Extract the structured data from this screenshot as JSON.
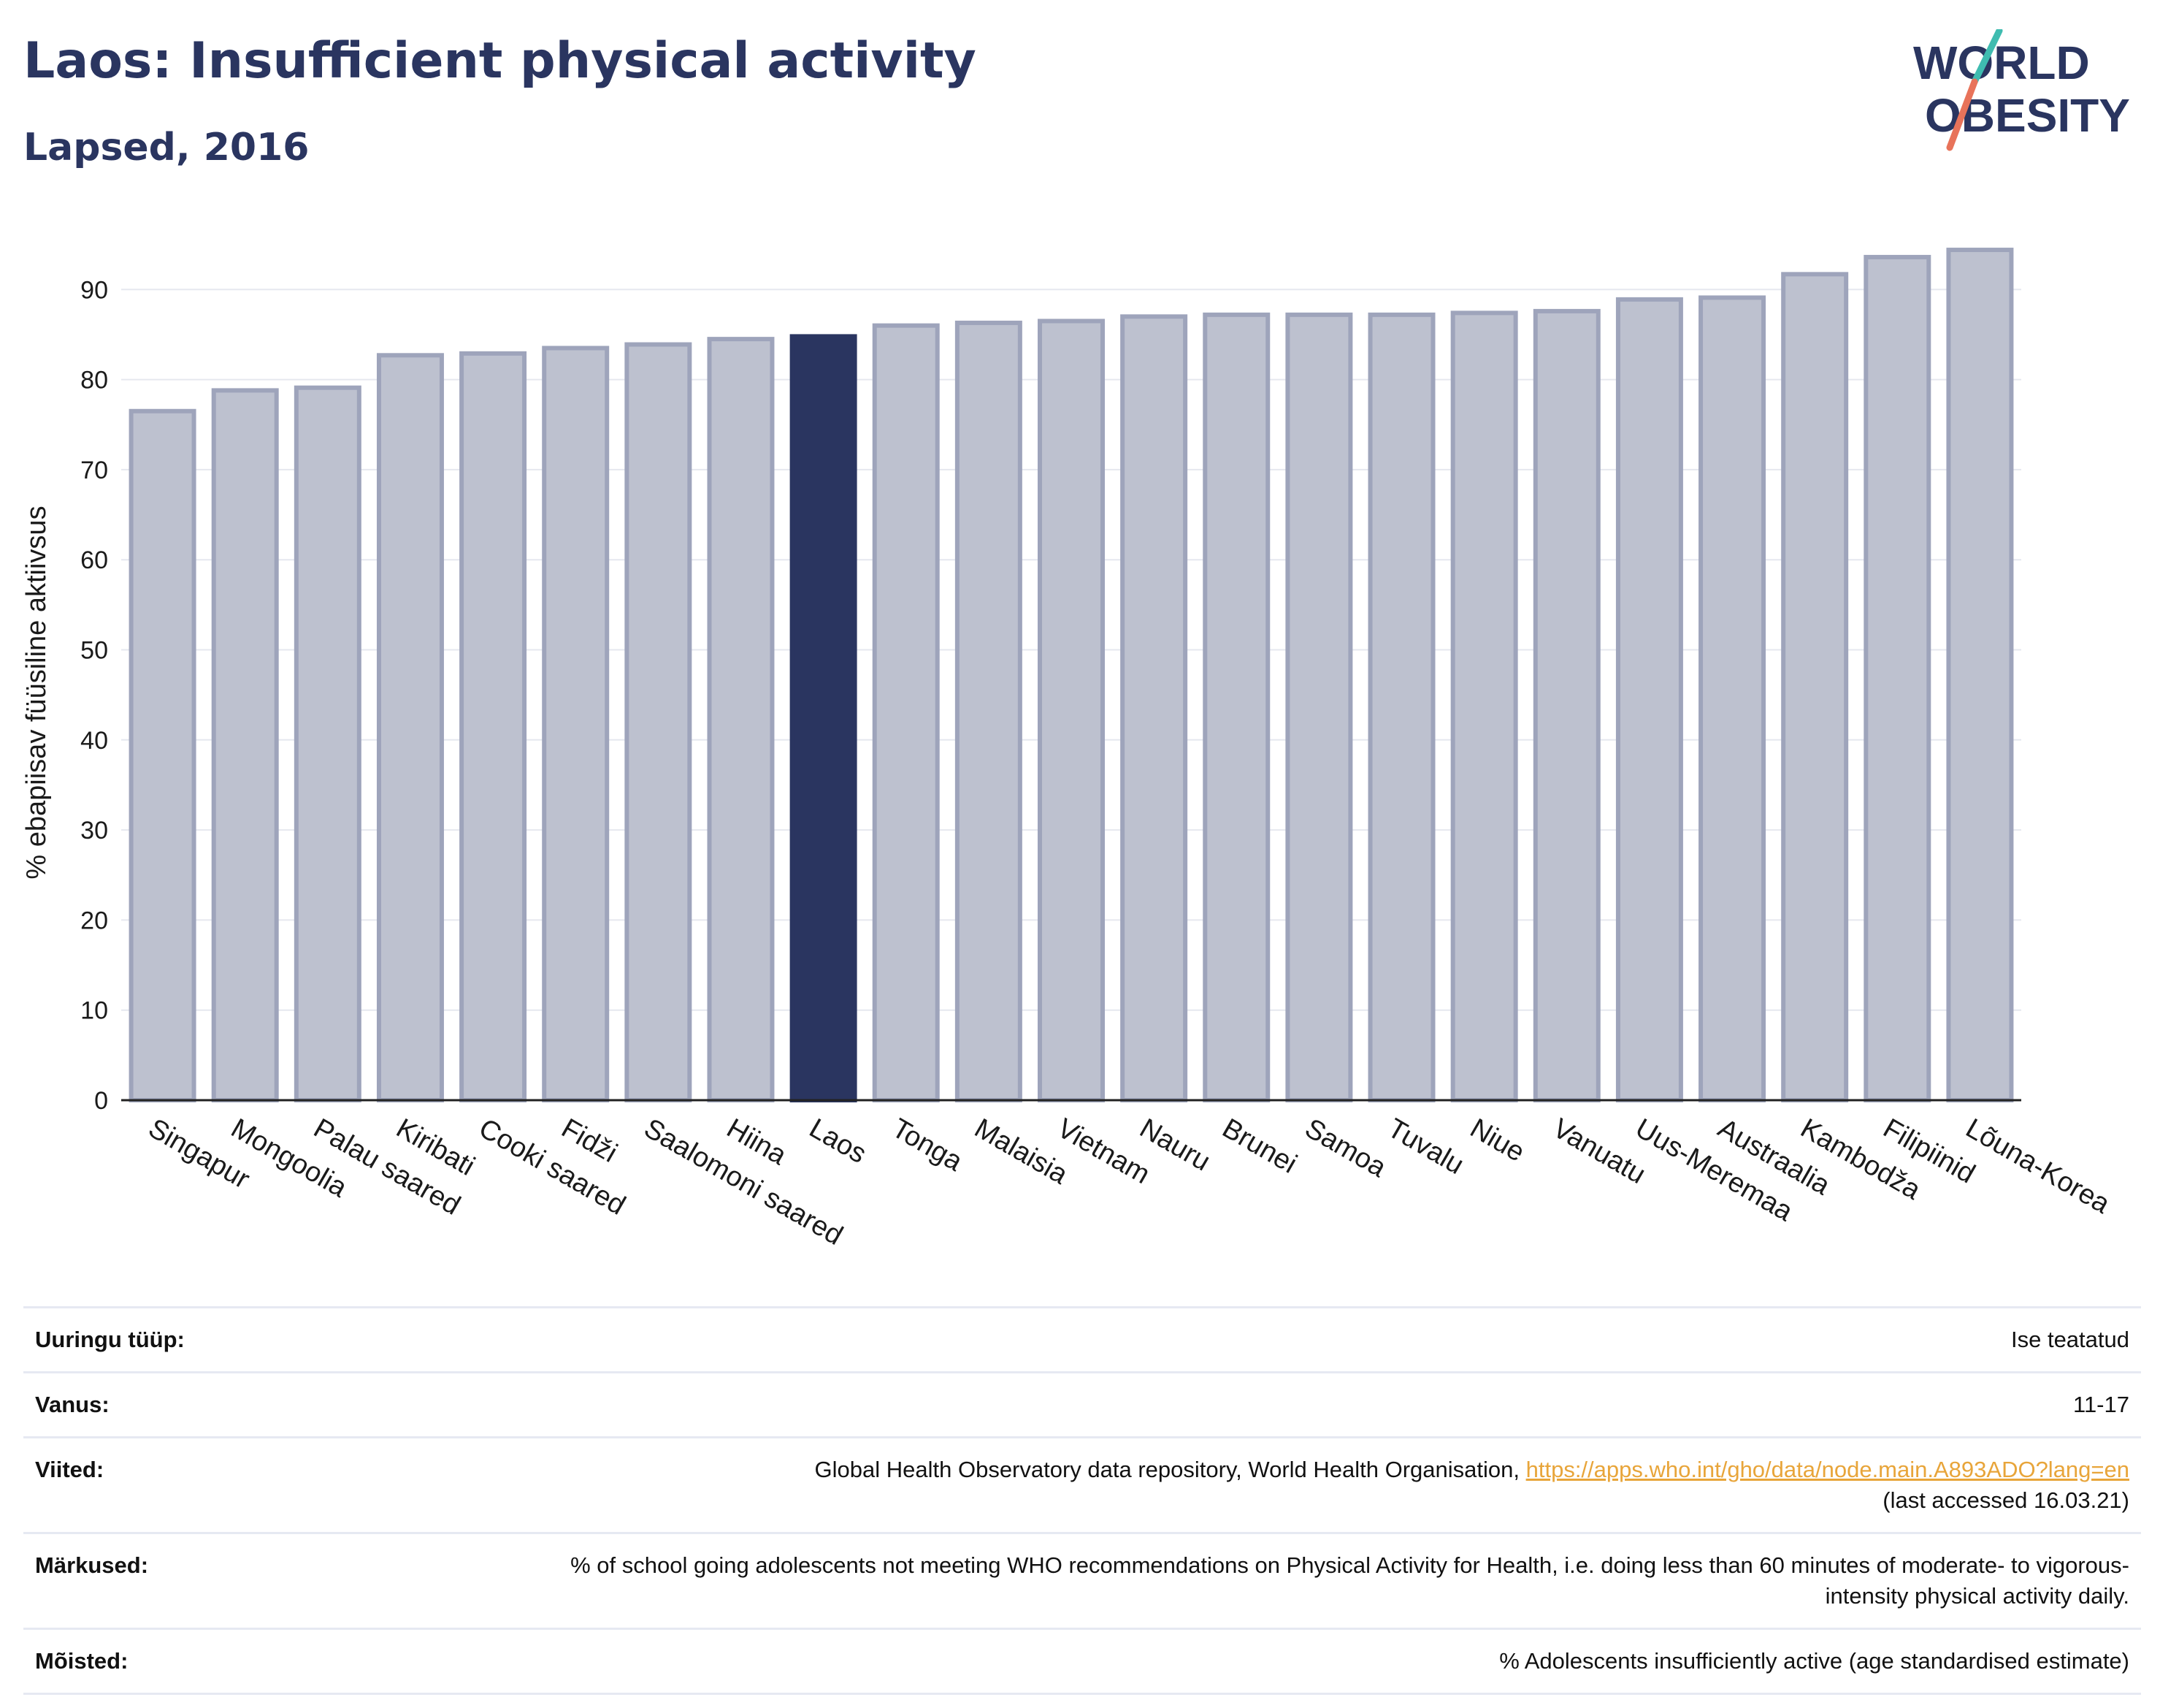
{
  "header": {
    "title": "Laos: Insufficient physical activity",
    "subtitle": "Lapsed, 2016"
  },
  "logo": {
    "line1": "WORLD",
    "line2": "OBESITY"
  },
  "colors": {
    "highlight": "#2a3560",
    "bar": "#bdc1cf",
    "bar_border": "#9ea4bb",
    "grid": "#e6e8ef",
    "logo_teal": "#3fbcb0",
    "logo_coral": "#e8735a"
  },
  "chart_data": {
    "type": "bar",
    "title": "Laos: Insufficient physical activity",
    "subtitle": "Lapsed, 2016",
    "xlabel": "",
    "ylabel": "% ebapiisav füüsiline aktiivsus",
    "ylim": [
      0,
      97
    ],
    "yticks": [
      0,
      10,
      20,
      30,
      40,
      50,
      60,
      70,
      80,
      90
    ],
    "grid": true,
    "highlight": "Laos",
    "categories": [
      "Singapur",
      "Mongoolia",
      "Palau saared",
      "Kiribati",
      "Cooki saared",
      "Fidži",
      "Saalomoni saared",
      "Hiina",
      "Laos",
      "Tonga",
      "Malaisia",
      "Vietnam",
      "Nauru",
      "Brunei",
      "Samoa",
      "Tuvalu",
      "Niue",
      "Vanuatu",
      "Uus-Meremaa",
      "Austraalia",
      "Kambodža",
      "Filipiinid",
      "Lõuna-Korea"
    ],
    "values": [
      76.5,
      78.8,
      79.1,
      82.7,
      82.9,
      83.5,
      83.9,
      84.5,
      84.8,
      86.0,
      86.3,
      86.5,
      87.0,
      87.2,
      87.2,
      87.2,
      87.4,
      87.6,
      88.9,
      89.1,
      91.7,
      93.6,
      94.4
    ]
  },
  "info": {
    "rows": [
      {
        "label": "Uuringu tüüp:",
        "value": "Ise teatatud"
      },
      {
        "label": "Vanus:",
        "value": "11-17"
      },
      {
        "label": "Viited:",
        "value": "Global Health Observatory data repository, World Health Organisation, ",
        "link": "https://apps.who.int/gho/data/node.main.A893ADO?lang=en",
        "value2": "(last accessed 16.03.21)"
      },
      {
        "label": "Märkused:",
        "value": "% of school going adolescents not meeting WHO recommendations on Physical Activity for Health, i.e. doing less than 60 minutes of moderate- to vigorous-intensity physical activity daily."
      },
      {
        "label": "Mõisted:",
        "value": "% Adolescents insufficiently active (age standardised estimate)"
      }
    ]
  }
}
